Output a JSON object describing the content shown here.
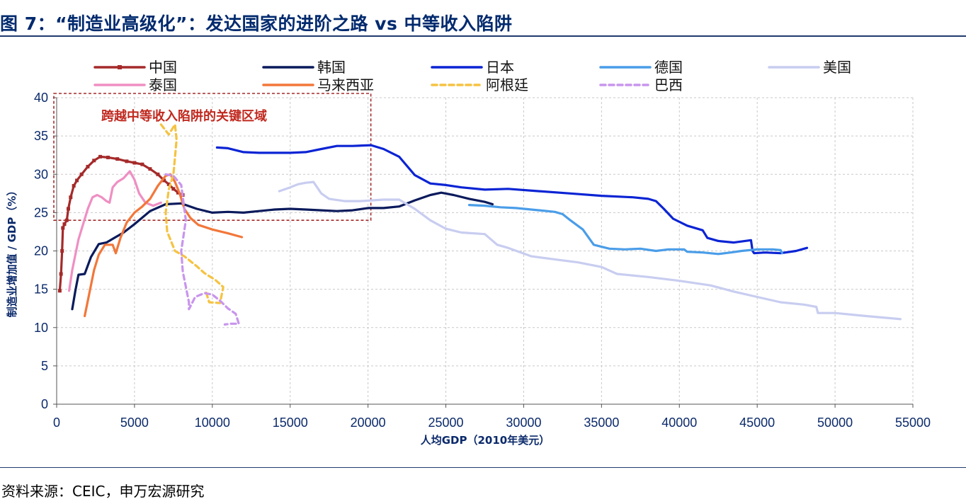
{
  "title": "图 7：“制造业高级化”：发达国家的进阶之路 vs 中等收入陷阱",
  "source": "资料来源：CEIC，申万宏源研究",
  "chart_data": {
    "type": "line",
    "title": "图 7：“制造业高级化”：发达国家的进阶之路 vs 中等收入陷阱",
    "xlabel": "人均GDP（2010年美元）",
    "ylabel": "制造业增加值 / GDP（%）",
    "xlim": [
      0,
      55000
    ],
    "ylim": [
      0,
      40
    ],
    "xticks": [
      "0",
      "5000",
      "10000",
      "15000",
      "20000",
      "25000",
      "30000",
      "35000",
      "40000",
      "45000",
      "50000",
      "55000"
    ],
    "yticks": [
      "0",
      "5",
      "10",
      "15",
      "20",
      "25",
      "30",
      "35",
      "40"
    ],
    "grid": true,
    "legend_position": "top",
    "annotation": {
      "text": "跨越中等收入陷阱的关键区域",
      "x_range": [
        0,
        20000
      ],
      "y_range": [
        24,
        40
      ],
      "color": "#a52a2a"
    },
    "series": [
      {
        "name": "中国",
        "color": "#a52a2a",
        "style": "solid-marker",
        "points": [
          [
            200,
            14.8
          ],
          [
            280,
            17
          ],
          [
            350,
            20
          ],
          [
            400,
            23
          ],
          [
            500,
            23.5
          ],
          [
            650,
            24
          ],
          [
            750,
            25.5
          ],
          [
            900,
            27
          ],
          [
            1100,
            28.5
          ],
          [
            1300,
            29.2
          ],
          [
            1600,
            30
          ],
          [
            2000,
            31
          ],
          [
            2400,
            31.8
          ],
          [
            2800,
            32.3
          ],
          [
            3300,
            32.2
          ],
          [
            3900,
            32
          ],
          [
            4500,
            31.7
          ],
          [
            5000,
            31.5
          ],
          [
            5500,
            31.3
          ],
          [
            6000,
            30.7
          ],
          [
            6500,
            30
          ],
          [
            6900,
            29.2
          ],
          [
            7200,
            28.7
          ],
          [
            7500,
            28.1
          ],
          [
            7800,
            27.6
          ],
          [
            8100,
            27.3
          ]
        ]
      },
      {
        "name": "韩国",
        "color": "#0a1a5c",
        "style": "solid",
        "points": [
          [
            1000,
            12.4
          ],
          [
            1200,
            14.8
          ],
          [
            1400,
            16.9
          ],
          [
            1800,
            17.0
          ],
          [
            2200,
            19.2
          ],
          [
            2700,
            20.9
          ],
          [
            3200,
            21.1
          ],
          [
            3700,
            21.7
          ],
          [
            4300,
            22.4
          ],
          [
            5000,
            23.5
          ],
          [
            6000,
            25.2
          ],
          [
            7000,
            26.1
          ],
          [
            8000,
            26.2
          ],
          [
            9000,
            25.5
          ],
          [
            10000,
            25.0
          ],
          [
            11000,
            25.1
          ],
          [
            12000,
            25.0
          ],
          [
            13000,
            25.2
          ],
          [
            14000,
            25.4
          ],
          [
            15000,
            25.5
          ],
          [
            16000,
            25.4
          ],
          [
            17000,
            25.3
          ],
          [
            18000,
            25.2
          ],
          [
            19000,
            25.3
          ],
          [
            20000,
            25.6
          ],
          [
            21000,
            25.6
          ],
          [
            22000,
            25.8
          ],
          [
            23000,
            26.6
          ],
          [
            24000,
            27.3
          ],
          [
            24700,
            27.6
          ],
          [
            25500,
            27.3
          ],
          [
            26500,
            26.8
          ],
          [
            27500,
            26.4
          ],
          [
            28000,
            26.1
          ]
        ]
      },
      {
        "name": "日本",
        "color": "#0b24d4",
        "style": "solid",
        "points": [
          [
            10300,
            33.5
          ],
          [
            11000,
            33.4
          ],
          [
            12000,
            32.9
          ],
          [
            13000,
            32.8
          ],
          [
            15000,
            32.8
          ],
          [
            16000,
            32.9
          ],
          [
            17000,
            33.3
          ],
          [
            18000,
            33.7
          ],
          [
            19000,
            33.7
          ],
          [
            20200,
            33.8
          ],
          [
            21000,
            33.3
          ],
          [
            22000,
            32.3
          ],
          [
            23000,
            29.9
          ],
          [
            24000,
            28.8
          ],
          [
            25000,
            28.6
          ],
          [
            26000,
            28.3
          ],
          [
            27500,
            28.0
          ],
          [
            29000,
            28.1
          ],
          [
            31000,
            27.8
          ],
          [
            33000,
            27.5
          ],
          [
            35000,
            27.2
          ],
          [
            37000,
            27.0
          ],
          [
            38000,
            26.8
          ],
          [
            38500,
            26.5
          ],
          [
            39000,
            25.5
          ],
          [
            39600,
            24.2
          ],
          [
            40500,
            23.3
          ],
          [
            41500,
            22.7
          ],
          [
            41800,
            21.7
          ],
          [
            42500,
            21.3
          ],
          [
            43500,
            21.1
          ],
          [
            44600,
            21.4
          ],
          [
            44700,
            20.0
          ],
          [
            44800,
            19.7
          ],
          [
            45500,
            19.8
          ],
          [
            46500,
            19.7
          ],
          [
            47500,
            20.0
          ],
          [
            48200,
            20.4
          ]
        ]
      },
      {
        "name": "德国",
        "color": "#4a9de8",
        "style": "solid",
        "points": [
          [
            26500,
            26.0
          ],
          [
            27500,
            25.9
          ],
          [
            28500,
            25.7
          ],
          [
            29500,
            25.6
          ],
          [
            31000,
            25.3
          ],
          [
            32000,
            25.1
          ],
          [
            32500,
            24.8
          ],
          [
            33000,
            24.0
          ],
          [
            33800,
            22.8
          ],
          [
            34500,
            20.8
          ],
          [
            35500,
            20.3
          ],
          [
            36500,
            20.2
          ],
          [
            37500,
            20.3
          ],
          [
            38500,
            20.0
          ],
          [
            39300,
            20.2
          ],
          [
            40300,
            20.2
          ],
          [
            40500,
            19.9
          ],
          [
            41500,
            19.8
          ],
          [
            42500,
            19.6
          ],
          [
            43300,
            19.8
          ],
          [
            44000,
            20.0
          ],
          [
            45000,
            20.2
          ],
          [
            46000,
            20.2
          ],
          [
            46500,
            20.1
          ],
          [
            46600,
            19.7
          ]
        ]
      },
      {
        "name": "美国",
        "color": "#c8cdf0",
        "style": "solid",
        "points": [
          [
            14300,
            27.8
          ],
          [
            15000,
            28.3
          ],
          [
            15500,
            28.7
          ],
          [
            16000,
            28.9
          ],
          [
            16500,
            29.0
          ],
          [
            17000,
            27.5
          ],
          [
            17500,
            26.8
          ],
          [
            18500,
            26.5
          ],
          [
            19500,
            26.5
          ],
          [
            21000,
            26.7
          ],
          [
            22000,
            26.7
          ],
          [
            23000,
            25.5
          ],
          [
            24000,
            24.0
          ],
          [
            25000,
            22.9
          ],
          [
            26000,
            22.4
          ],
          [
            27500,
            22.2
          ],
          [
            28300,
            20.8
          ],
          [
            29000,
            20.4
          ],
          [
            30500,
            19.3
          ],
          [
            32000,
            18.9
          ],
          [
            33500,
            18.5
          ],
          [
            35000,
            17.9
          ],
          [
            36000,
            17.0
          ],
          [
            38000,
            16.6
          ],
          [
            40000,
            16.1
          ],
          [
            42000,
            15.5
          ],
          [
            43500,
            14.7
          ],
          [
            45000,
            14.0
          ],
          [
            46500,
            13.3
          ],
          [
            48000,
            13.0
          ],
          [
            48800,
            12.7
          ],
          [
            48900,
            11.9
          ],
          [
            50000,
            11.9
          ],
          [
            52000,
            11.5
          ],
          [
            54200,
            11.1
          ]
        ]
      },
      {
        "name": "泰国",
        "color": "#ef8fc3",
        "style": "solid",
        "points": [
          [
            800,
            14.8
          ],
          [
            1000,
            17.5
          ],
          [
            1200,
            19.5
          ],
          [
            1400,
            21.5
          ],
          [
            1700,
            23.5
          ],
          [
            2000,
            25.5
          ],
          [
            2300,
            27.0
          ],
          [
            2600,
            27.3
          ],
          [
            2900,
            27.0
          ],
          [
            3200,
            26.5
          ],
          [
            3400,
            26.3
          ],
          [
            3600,
            28.3
          ],
          [
            3900,
            29.0
          ],
          [
            4300,
            29.5
          ],
          [
            4700,
            30.4
          ],
          [
            5000,
            29.3
          ],
          [
            5300,
            27.5
          ],
          [
            5700,
            26.3
          ],
          [
            6200,
            25.9
          ],
          [
            6700,
            26.3
          ]
        ]
      },
      {
        "name": "马来西亚",
        "color": "#f2773a",
        "style": "solid",
        "points": [
          [
            1800,
            11.5
          ],
          [
            2100,
            14.5
          ],
          [
            2400,
            17.5
          ],
          [
            2700,
            19.5
          ],
          [
            3100,
            20.8
          ],
          [
            3600,
            20.8
          ],
          [
            3800,
            19.7
          ],
          [
            4100,
            21.7
          ],
          [
            4500,
            23.7
          ],
          [
            5000,
            25.0
          ],
          [
            5500,
            25.8
          ],
          [
            6000,
            26.8
          ],
          [
            6500,
            28.5
          ],
          [
            7000,
            29.8
          ],
          [
            7300,
            30.0
          ],
          [
            7600,
            29.0
          ],
          [
            7900,
            27.5
          ],
          [
            8200,
            25.5
          ],
          [
            8600,
            24.3
          ],
          [
            9100,
            23.4
          ],
          [
            10000,
            22.8
          ],
          [
            11000,
            22.3
          ],
          [
            11900,
            21.8
          ]
        ]
      },
      {
        "name": "阿根廷",
        "color": "#f5c342",
        "style": "dashed",
        "points": [
          [
            6700,
            36.5
          ],
          [
            7200,
            35.2
          ],
          [
            7600,
            36.5
          ],
          [
            7700,
            34.5
          ],
          [
            7500,
            30.0
          ],
          [
            7200,
            28.0
          ],
          [
            7000,
            25.0
          ],
          [
            7100,
            22.5
          ],
          [
            7600,
            20.0
          ],
          [
            8200,
            19.3
          ],
          [
            9000,
            18.0
          ],
          [
            9500,
            17.1
          ],
          [
            10200,
            16.2
          ],
          [
            10700,
            15.3
          ],
          [
            10500,
            13.2
          ],
          [
            9800,
            13.3
          ],
          [
            9600,
            14.6
          ]
        ]
      },
      {
        "name": "巴西",
        "color": "#c895ed",
        "style": "dashed",
        "points": [
          [
            7000,
            30.0
          ],
          [
            7500,
            29.8
          ],
          [
            8000,
            28.6
          ],
          [
            8300,
            24.0
          ],
          [
            8000,
            20.0
          ],
          [
            8100,
            17.3
          ],
          [
            8500,
            13.3
          ],
          [
            8500,
            12.4
          ],
          [
            8900,
            14.0
          ],
          [
            9500,
            14.5
          ],
          [
            10000,
            14.3
          ],
          [
            10500,
            13.5
          ],
          [
            11000,
            12.5
          ],
          [
            11500,
            11.8
          ],
          [
            11700,
            10.5
          ],
          [
            11200,
            10.5
          ],
          [
            10800,
            10.4
          ]
        ]
      }
    ]
  }
}
